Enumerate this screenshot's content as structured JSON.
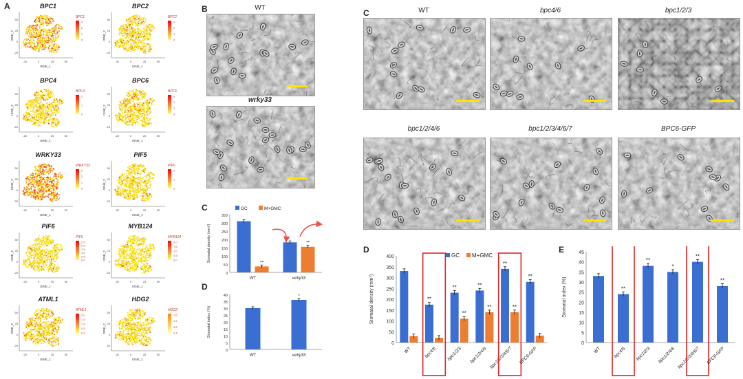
{
  "panel_letters": {
    "A": "A",
    "B": "B",
    "C_left": "C",
    "D_left": "D",
    "C_right": "C",
    "D_right": "D",
    "E_right": "E"
  },
  "panelA": {
    "axis_x_label": "tSNE_1",
    "axis_y_label": "tSNE_2",
    "x_ticks": [
      "-25",
      "0",
      "25",
      "50"
    ],
    "y_ticks": [
      "-25",
      "0",
      "25",
      "50"
    ],
    "plots": [
      {
        "gene": "BPC1",
        "legend_title": "BPC1",
        "legend_ticks": [
          "3",
          "2",
          "1",
          "0"
        ],
        "level": 0.35,
        "gradient": [
          "#ffff66",
          "#ff0000"
        ]
      },
      {
        "gene": "BPC2",
        "legend_title": "BPC2",
        "legend_ticks": [
          "3",
          "2",
          "1",
          "0"
        ],
        "level": 0.15,
        "gradient": [
          "#ffff66",
          "#ff0000"
        ]
      },
      {
        "gene": "BPC4",
        "legend_title": "BPC4",
        "legend_ticks": [
          "2",
          "1",
          "0"
        ],
        "level": 0.12,
        "gradient": [
          "#ffff66",
          "#ff0000"
        ]
      },
      {
        "gene": "BPC6",
        "legend_title": "BPC6",
        "legend_ticks": [
          "3",
          "2",
          "1",
          "0"
        ],
        "level": 0.12,
        "gradient": [
          "#ffff66",
          "#ff0000"
        ]
      },
      {
        "gene": "WRKY33",
        "legend_title": "WRKY33",
        "legend_ticks": [
          "3",
          "2",
          "1",
          "0"
        ],
        "level": 0.55,
        "gradient": [
          "#ffff66",
          "#ff0000"
        ]
      },
      {
        "gene": "PIF5",
        "legend_title": "PIF5",
        "legend_ticks": [
          "2",
          "1",
          "0"
        ],
        "level": 0.08,
        "gradient": [
          "#ffff66",
          "#ff0000"
        ]
      },
      {
        "gene": "PIF6",
        "legend_title": "PIF6",
        "legend_ticks": [
          "2.5",
          "2.0",
          "1.5",
          "1.0",
          "0.5",
          "0.0"
        ],
        "level": 0.06,
        "gradient": [
          "#ffff66",
          "#ff0000"
        ]
      },
      {
        "gene": "MYB124",
        "legend_title": "MYB124",
        "legend_ticks": [
          "2.0",
          "1.5",
          "1.0",
          "0.5",
          "0.0"
        ],
        "level": 0.05,
        "gradient": [
          "#ffff66",
          "#ff0000"
        ]
      },
      {
        "gene": "ATML1",
        "legend_title": "ATML1",
        "legend_ticks": [
          "2.0",
          "1.5",
          "1.0",
          "0.5",
          "0.0"
        ],
        "level": 0.18,
        "gradient": [
          "#ffff66",
          "#ff0000"
        ]
      },
      {
        "gene": "HDG2",
        "legend_title": "HDG2",
        "legend_ticks": [
          "1.6",
          "1.2",
          "0.8",
          "0.4"
        ],
        "level": 0.1,
        "gradient": [
          "#ffffaa",
          "#ff8800"
        ]
      }
    ]
  },
  "panelB": {
    "top_title": "WT",
    "bottom_title": "wrky33"
  },
  "panelC_right": {
    "titles": [
      "WT",
      "bpc4/6",
      "bpc1/2/3",
      "bpc1/2/4/6",
      "bpc1/2/3/4/6/7",
      "BPC6-GFP"
    ]
  },
  "colors": {
    "gc": "#3a6fd1",
    "mgmc": "#ed7d31",
    "highlight": "#e32222",
    "arrow": "#e8524a",
    "scalebar": "#ffe400"
  },
  "chart_data": [
    {
      "type": "bar",
      "panel": "C (left)",
      "ylabel": "Stomatal density (mm²)",
      "categories": [
        "WT",
        "wrky33"
      ],
      "series": [
        {
          "name": "GC",
          "values": [
            310,
            182
          ]
        },
        {
          "name": "M+GMC",
          "values": [
            36,
            155
          ]
        }
      ],
      "ylim": [
        0,
        350
      ],
      "yticks": [
        "0",
        "50",
        "100",
        "150",
        "200",
        "250",
        "300",
        "350"
      ],
      "significance": [
        [
          "",
          ""
        ],
        [
          "**",
          "**"
        ]
      ],
      "legend": "top"
    },
    {
      "type": "bar",
      "panel": "D (left)",
      "ylabel": "Stomatal index (%)",
      "categories": [
        "WT",
        "wrky33"
      ],
      "series": [
        {
          "name": "",
          "values": [
            30,
            36
          ]
        }
      ],
      "ylim": [
        0,
        40
      ],
      "yticks": [
        "0",
        "5",
        "10",
        "15",
        "20",
        "25",
        "30",
        "35",
        "40"
      ],
      "significance": [
        [
          "",
          "*"
        ]
      ]
    },
    {
      "type": "bar",
      "panel": "D (right)",
      "ylabel": "Stomatal density (mm²)",
      "categories": [
        "WT",
        "bpc4/6",
        "bpc1/2/3",
        "bpc1/2/4/6",
        "bpc1/2/3/4/6/7",
        "BPC6-GFP"
      ],
      "series": [
        {
          "name": "GC",
          "values": [
            330,
            175,
            230,
            240,
            340,
            280
          ]
        },
        {
          "name": "M+GMC",
          "values": [
            30,
            22,
            110,
            140,
            140,
            32
          ]
        }
      ],
      "ylim": [
        0,
        400
      ],
      "yticks": [
        "0",
        "50",
        "100",
        "150",
        "200",
        "250",
        "300",
        "350",
        "400"
      ],
      "significance": [
        [
          "",
          "**",
          "**",
          "**",
          "**",
          "**"
        ],
        [
          "",
          "",
          "**",
          "**",
          "**",
          ""
        ]
      ],
      "highlighted_categories": [
        "bpc4/6",
        "bpc1/2/3/4/6/7"
      ],
      "legend": "top"
    },
    {
      "type": "bar",
      "panel": "E (right)",
      "ylabel": "Stomatal index (%)",
      "categories": [
        "WT",
        "bpc4/6",
        "bpc1/2/3",
        "bpc1/2/4/6",
        "bpc1/2/3/4/6/7",
        "BPC6-GFP"
      ],
      "series": [
        {
          "name": "",
          "values": [
            33,
            24,
            38,
            35,
            40,
            28
          ]
        }
      ],
      "ylim": [
        0,
        45
      ],
      "yticks": [
        "0",
        "5",
        "10",
        "15",
        "20",
        "25",
        "30",
        "35",
        "40",
        "45"
      ],
      "significance": [
        [
          "",
          "**",
          "**",
          "*",
          "**",
          "**"
        ]
      ],
      "highlighted_categories": [
        "bpc4/6",
        "bpc1/2/3/4/6/7"
      ]
    }
  ]
}
